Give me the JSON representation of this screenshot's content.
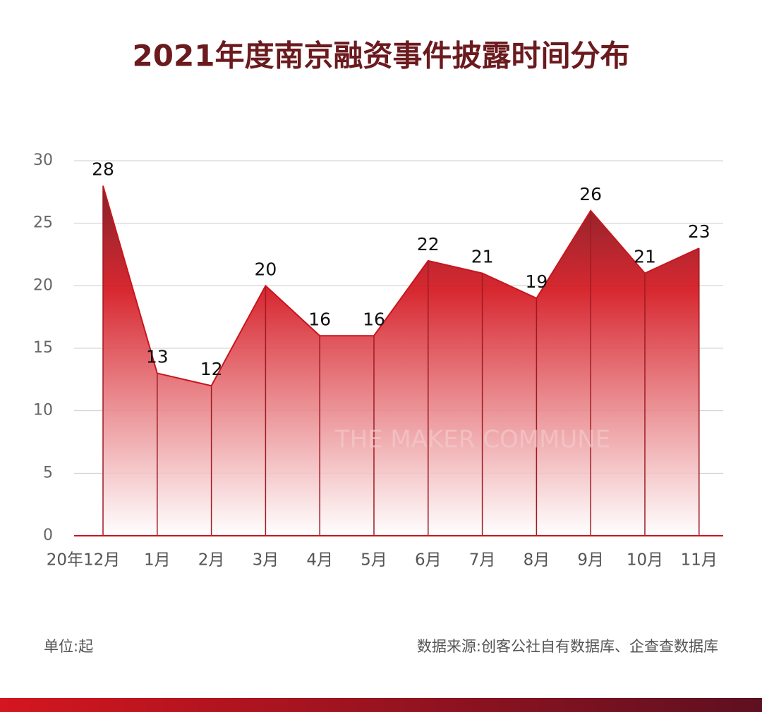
{
  "chart_data": {
    "type": "area",
    "title": "2021年度南京融资事件披露时间分布",
    "categories": [
      "20年12月",
      "1月",
      "2月",
      "3月",
      "4月",
      "5月",
      "6月",
      "7月",
      "8月",
      "9月",
      "10月",
      "11月"
    ],
    "values": [
      28,
      13,
      12,
      20,
      16,
      16,
      22,
      21,
      19,
      26,
      21,
      23
    ],
    "color": "#c8161d",
    "ylim": [
      0,
      30
    ],
    "yticks": [
      0,
      5,
      10,
      15,
      20,
      25,
      30
    ],
    "grid": true,
    "watermark": "THE MAKER COMMUNE",
    "unit_note": "单位:起",
    "source": "数据来源:创客公社自有数据库、企查查数据库"
  }
}
